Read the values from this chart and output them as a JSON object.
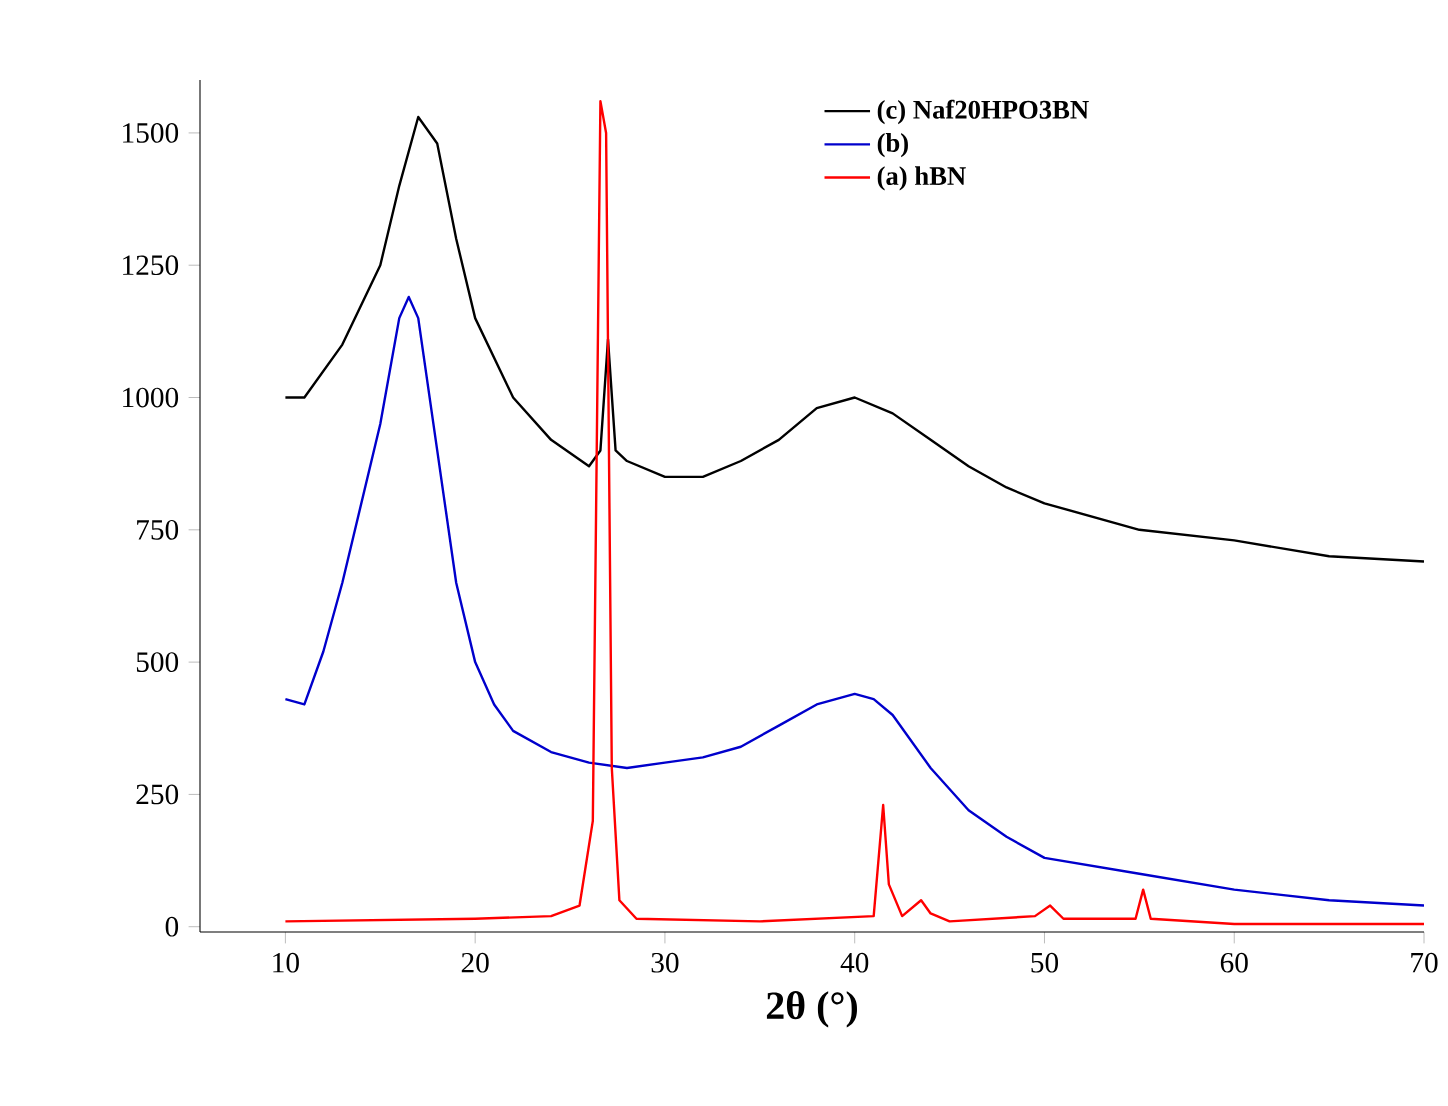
{
  "chart_data": {
    "type": "line",
    "xlabel": "2θ (°)",
    "xlim": [
      5.5,
      70
    ],
    "ylim": [
      -10,
      1600
    ],
    "xticks": [
      10,
      20,
      30,
      40,
      50,
      60,
      70
    ],
    "yticks": [
      0,
      250,
      500,
      750,
      1000,
      1250,
      1500
    ],
    "grid": false,
    "legend": "top",
    "marker": "none",
    "line_style": "solid",
    "series": [
      {
        "name": "(c) Naf20HPO3BN",
        "color": "#000000",
        "x": [
          10,
          11,
          13,
          15,
          16,
          17,
          18,
          19,
          20,
          22,
          24,
          26,
          26.6,
          27,
          27.4,
          28,
          30,
          32,
          34,
          36,
          38,
          40,
          42,
          44,
          46,
          48,
          50,
          55,
          60,
          65,
          70
        ],
        "values": [
          1000,
          1000,
          1100,
          1250,
          1400,
          1530,
          1480,
          1300,
          1150,
          1000,
          920,
          870,
          900,
          1110,
          900,
          880,
          850,
          850,
          880,
          920,
          980,
          1000,
          970,
          920,
          870,
          830,
          800,
          750,
          730,
          700,
          690
        ]
      },
      {
        "name": "(b)",
        "color": "#0000cc",
        "x": [
          10,
          11,
          12,
          13,
          14,
          15,
          16,
          16.5,
          17,
          18,
          19,
          20,
          21,
          22,
          24,
          26,
          28,
          30,
          32,
          34,
          36,
          38,
          40,
          41,
          42,
          44,
          46,
          48,
          50,
          55,
          60,
          65,
          70
        ],
        "values": [
          430,
          420,
          520,
          650,
          800,
          950,
          1150,
          1190,
          1150,
          900,
          650,
          500,
          420,
          370,
          330,
          310,
          300,
          310,
          320,
          340,
          380,
          420,
          440,
          430,
          400,
          300,
          220,
          170,
          130,
          100,
          70,
          50,
          40
        ]
      },
      {
        "name": "(a) hBN",
        "color": "#ff0000",
        "x": [
          10,
          20,
          24,
          25.5,
          26.2,
          26.6,
          26.9,
          27.2,
          27.6,
          28.5,
          35,
          41,
          41.5,
          41.8,
          42.5,
          43.5,
          44,
          45,
          49.5,
          50.3,
          51,
          54.8,
          55.2,
          55.6,
          60,
          70
        ],
        "values": [
          10,
          15,
          20,
          40,
          200,
          1560,
          1500,
          300,
          50,
          15,
          10,
          20,
          230,
          80,
          20,
          50,
          25,
          10,
          20,
          40,
          15,
          15,
          70,
          15,
          5,
          5
        ]
      }
    ]
  }
}
